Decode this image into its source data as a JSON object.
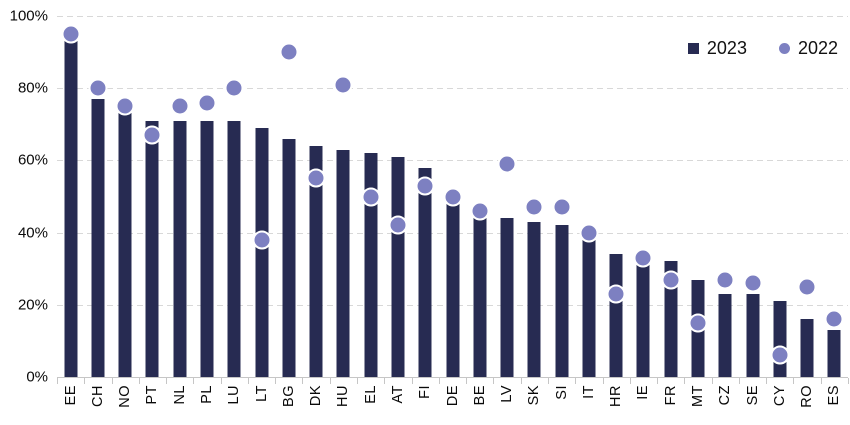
{
  "chart_data": {
    "type": "bar",
    "subtype": "combo-bar-with-scatter-markers",
    "title": "",
    "xlabel": "",
    "ylabel": "",
    "categories": [
      "EE",
      "CH",
      "NO",
      "PT",
      "NL",
      "PL",
      "LU",
      "LT",
      "BG",
      "DK",
      "HU",
      "EL",
      "AT",
      "FI",
      "DE",
      "BE",
      "LV",
      "SK",
      "SI",
      "IT",
      "HR",
      "IE",
      "FR",
      "MT",
      "CZ",
      "SE",
      "CY",
      "RO",
      "ES"
    ],
    "series": [
      {
        "name": "2023",
        "type": "bar",
        "marker": "square",
        "color": "#272b52",
        "values": [
          93,
          77,
          73,
          71,
          71,
          71,
          71,
          69,
          66,
          64,
          63,
          62,
          61,
          58,
          48,
          44,
          44,
          43,
          42,
          39,
          34,
          33,
          32,
          27,
          23,
          23,
          21,
          16,
          13
        ]
      },
      {
        "name": "2022",
        "type": "scatter",
        "marker": "circle",
        "color": "#7d80c1",
        "values": [
          95,
          80,
          75,
          67,
          75,
          76,
          80,
          38,
          90,
          55,
          81,
          50,
          42,
          53,
          50,
          46,
          59,
          47,
          47,
          40,
          23,
          33,
          27,
          15,
          27,
          26,
          6,
          25,
          16
        ]
      }
    ],
    "y_axis": {
      "min": 0,
      "max": 100,
      "step": 20,
      "unit": "%",
      "tick_labels": [
        "0%",
        "20%",
        "40%",
        "60%",
        "80%",
        "100%"
      ]
    },
    "grid": "horizontal-dashed",
    "legend_position": "top-right"
  },
  "colors": {
    "background": "#ffffff",
    "bar_2023": "#272b52",
    "dot_2022": "#7d80c1",
    "gridline": "#d8d8d8",
    "axis_line": "#c6c6c6",
    "text": "#0a0a0a"
  }
}
